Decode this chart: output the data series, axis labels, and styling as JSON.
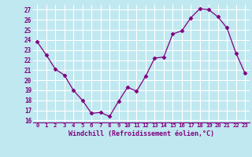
{
  "x": [
    0,
    1,
    2,
    3,
    4,
    5,
    6,
    7,
    8,
    9,
    10,
    11,
    12,
    13,
    14,
    15,
    16,
    17,
    18,
    19,
    20,
    21,
    22,
    23
  ],
  "y": [
    23.8,
    22.5,
    21.1,
    20.5,
    19.0,
    18.0,
    16.7,
    16.8,
    16.4,
    17.9,
    19.3,
    18.9,
    20.4,
    22.2,
    22.3,
    24.6,
    24.9,
    26.2,
    27.1,
    27.0,
    26.3,
    25.2,
    22.7,
    20.7
  ],
  "line_color": "#800080",
  "marker": "D",
  "marker_size": 2.5,
  "bg_color": "#c0e8f0",
  "grid_color": "#ffffff",
  "xlabel": "Windchill (Refroidissement éolien,°C)",
  "xlabel_color": "#800080",
  "tick_color": "#800080",
  "ylim": [
    15.8,
    27.5
  ],
  "yticks": [
    16,
    17,
    18,
    19,
    20,
    21,
    22,
    23,
    24,
    25,
    26,
    27
  ],
  "xlim": [
    -0.5,
    23.5
  ],
  "xticks": [
    0,
    1,
    2,
    3,
    4,
    5,
    6,
    7,
    8,
    9,
    10,
    11,
    12,
    13,
    14,
    15,
    16,
    17,
    18,
    19,
    20,
    21,
    22,
    23
  ],
  "xtick_labels": [
    "0",
    "1",
    "2",
    "3",
    "4",
    "5",
    "6",
    "7",
    "8",
    "9",
    "10",
    "11",
    "12",
    "13",
    "14",
    "15",
    "16",
    "17",
    "18",
    "19",
    "20",
    "21",
    "22",
    "23"
  ]
}
